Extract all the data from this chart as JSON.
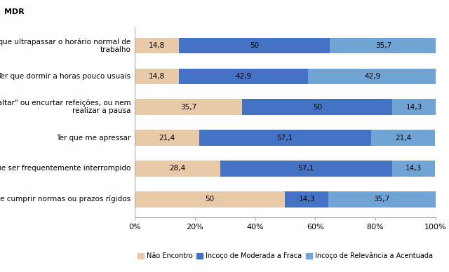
{
  "categories": [
    "Ter de cumprir normas ou prazos rígidos",
    "Ter que ser frequentemente interrompido",
    "Ter que me apressar",
    "Ter que \"saltar\" ou encurtar refeições, ou nem\nrealizar a pausa",
    "Ter que dormir a horas pouco usuais",
    "Ter que ultrapassar o horário normal de\ntrabalho"
  ],
  "series": [
    {
      "name": "Não Encontro",
      "color": "#E8C9A8",
      "values": [
        50.0,
        28.4,
        21.4,
        35.7,
        14.8,
        14.8
      ]
    },
    {
      "name": "Incoço de Moderada a Fraca",
      "color": "#4472C4",
      "values": [
        14.3,
        57.1,
        57.1,
        50.0,
        42.9,
        50.0
      ]
    },
    {
      "name": "Incoço de Relevância a Acentuada",
      "color": "#70A4D4",
      "values": [
        35.7,
        14.3,
        21.4,
        14.3,
        42.9,
        35.7
      ]
    }
  ],
  "value_labels": [
    [
      "50",
      "14,3",
      "35,7"
    ],
    [
      "28,4",
      "57,1",
      "14,3"
    ],
    [
      "21,4",
      "57,1",
      "21,4"
    ],
    [
      "35,7",
      "50",
      "14,3"
    ],
    [
      "14,8",
      "42,9",
      "42,9"
    ],
    [
      "14,8",
      "50",
      "35,7"
    ]
  ],
  "xlim": [
    0,
    100
  ],
  "xticks": [
    0,
    20,
    40,
    60,
    80,
    100
  ],
  "xticklabels": [
    "0%",
    "20%",
    "40%",
    "60%",
    "80%",
    "100%"
  ],
  "bar_height": 0.52,
  "figsize": [
    6.4,
    3.88
  ],
  "dpi": 100,
  "title": "MDR",
  "title_fontsize": 8,
  "bar_label_fontsize": 7.5,
  "tick_fontsize": 8,
  "ytick_fontsize": 7.5,
  "legend_fontsize": 7,
  "legend_labels": [
    "Não Encontro",
    "Incoço de Moderada a Fraca",
    "Incoço de Relevância a Acentuada"
  ],
  "background_color": "#FFFFFF",
  "spine_color": "#AAAAAA"
}
